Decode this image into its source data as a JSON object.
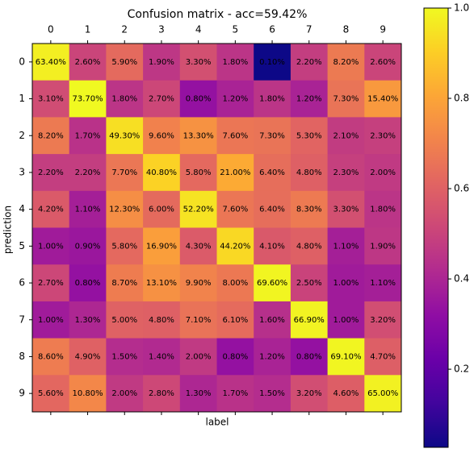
{
  "chart_data": {
    "type": "heatmap",
    "title": "Confusion matrix - acc=59.42%",
    "xlabel": "label",
    "ylabel": "prediction",
    "categories": [
      "0",
      "1",
      "2",
      "3",
      "4",
      "5",
      "6",
      "7",
      "8",
      "9"
    ],
    "y_categories": [
      "0",
      "1",
      "2",
      "3",
      "4",
      "5",
      "6",
      "7",
      "8",
      "9"
    ],
    "colormap": "plasma",
    "color_norm": "log",
    "values": [
      [
        0.634,
        0.026,
        0.059,
        0.019,
        0.033,
        0.018,
        0.001,
        0.022,
        0.082,
        0.026
      ],
      [
        0.031,
        0.737,
        0.018,
        0.027,
        0.008,
        0.012,
        0.018,
        0.012,
        0.073,
        0.154
      ],
      [
        0.082,
        0.017,
        0.493,
        0.096,
        0.133,
        0.076,
        0.073,
        0.053,
        0.021,
        0.023
      ],
      [
        0.022,
        0.022,
        0.077,
        0.408,
        0.058,
        0.21,
        0.064,
        0.048,
        0.023,
        0.02
      ],
      [
        0.042,
        0.011,
        0.123,
        0.06,
        0.522,
        0.076,
        0.064,
        0.083,
        0.033,
        0.018
      ],
      [
        0.01,
        0.009,
        0.058,
        0.169,
        0.043,
        0.442,
        0.041,
        0.048,
        0.011,
        0.019
      ],
      [
        0.027,
        0.008,
        0.087,
        0.131,
        0.099,
        0.08,
        0.696,
        0.025,
        0.01,
        0.011
      ],
      [
        0.01,
        0.013,
        0.05,
        0.048,
        0.071,
        0.061,
        0.016,
        0.669,
        0.01,
        0.032
      ],
      [
        0.086,
        0.049,
        0.015,
        0.014,
        0.02,
        0.008,
        0.012,
        0.008,
        0.691,
        0.047
      ],
      [
        0.056,
        0.108,
        0.02,
        0.028,
        0.013,
        0.017,
        0.015,
        0.032,
        0.046,
        0.65
      ]
    ],
    "value_labels": [
      [
        "63.40%",
        "2.60%",
        "5.90%",
        "1.90%",
        "3.30%",
        "1.80%",
        "0.10%",
        "2.20%",
        "8.20%",
        "2.60%"
      ],
      [
        "3.10%",
        "73.70%",
        "1.80%",
        "2.70%",
        "0.80%",
        "1.20%",
        "1.80%",
        "1.20%",
        "7.30%",
        "15.40%"
      ],
      [
        "8.20%",
        "1.70%",
        "49.30%",
        "9.60%",
        "13.30%",
        "7.60%",
        "7.30%",
        "5.30%",
        "2.10%",
        "2.30%"
      ],
      [
        "2.20%",
        "2.20%",
        "7.70%",
        "40.80%",
        "5.80%",
        "21.00%",
        "6.40%",
        "4.80%",
        "2.30%",
        "2.00%"
      ],
      [
        "4.20%",
        "1.10%",
        "12.30%",
        "6.00%",
        "52.20%",
        "7.60%",
        "6.40%",
        "8.30%",
        "3.30%",
        "1.80%"
      ],
      [
        "1.00%",
        "0.90%",
        "5.80%",
        "16.90%",
        "4.30%",
        "44.20%",
        "4.10%",
        "4.80%",
        "1.10%",
        "1.90%"
      ],
      [
        "2.70%",
        "0.80%",
        "8.70%",
        "13.10%",
        "9.90%",
        "8.00%",
        "69.60%",
        "2.50%",
        "1.00%",
        "1.10%"
      ],
      [
        "1.00%",
        "1.30%",
        "5.00%",
        "4.80%",
        "7.10%",
        "6.10%",
        "1.60%",
        "66.90%",
        "1.00%",
        "3.20%"
      ],
      [
        "8.60%",
        "4.90%",
        "1.50%",
        "1.40%",
        "2.00%",
        "0.80%",
        "1.20%",
        "0.80%",
        "69.10%",
        "4.70%"
      ],
      [
        "5.60%",
        "10.80%",
        "2.00%",
        "2.80%",
        "1.30%",
        "1.70%",
        "1.50%",
        "3.20%",
        "4.60%",
        "65.00%"
      ]
    ],
    "colorbar": {
      "lim": [
        0.027,
        1
      ],
      "ticks": [
        0.2,
        0.4,
        0.6,
        0.8,
        {
          "value": 1,
          "label": "1.0"
        }
      ]
    }
  }
}
